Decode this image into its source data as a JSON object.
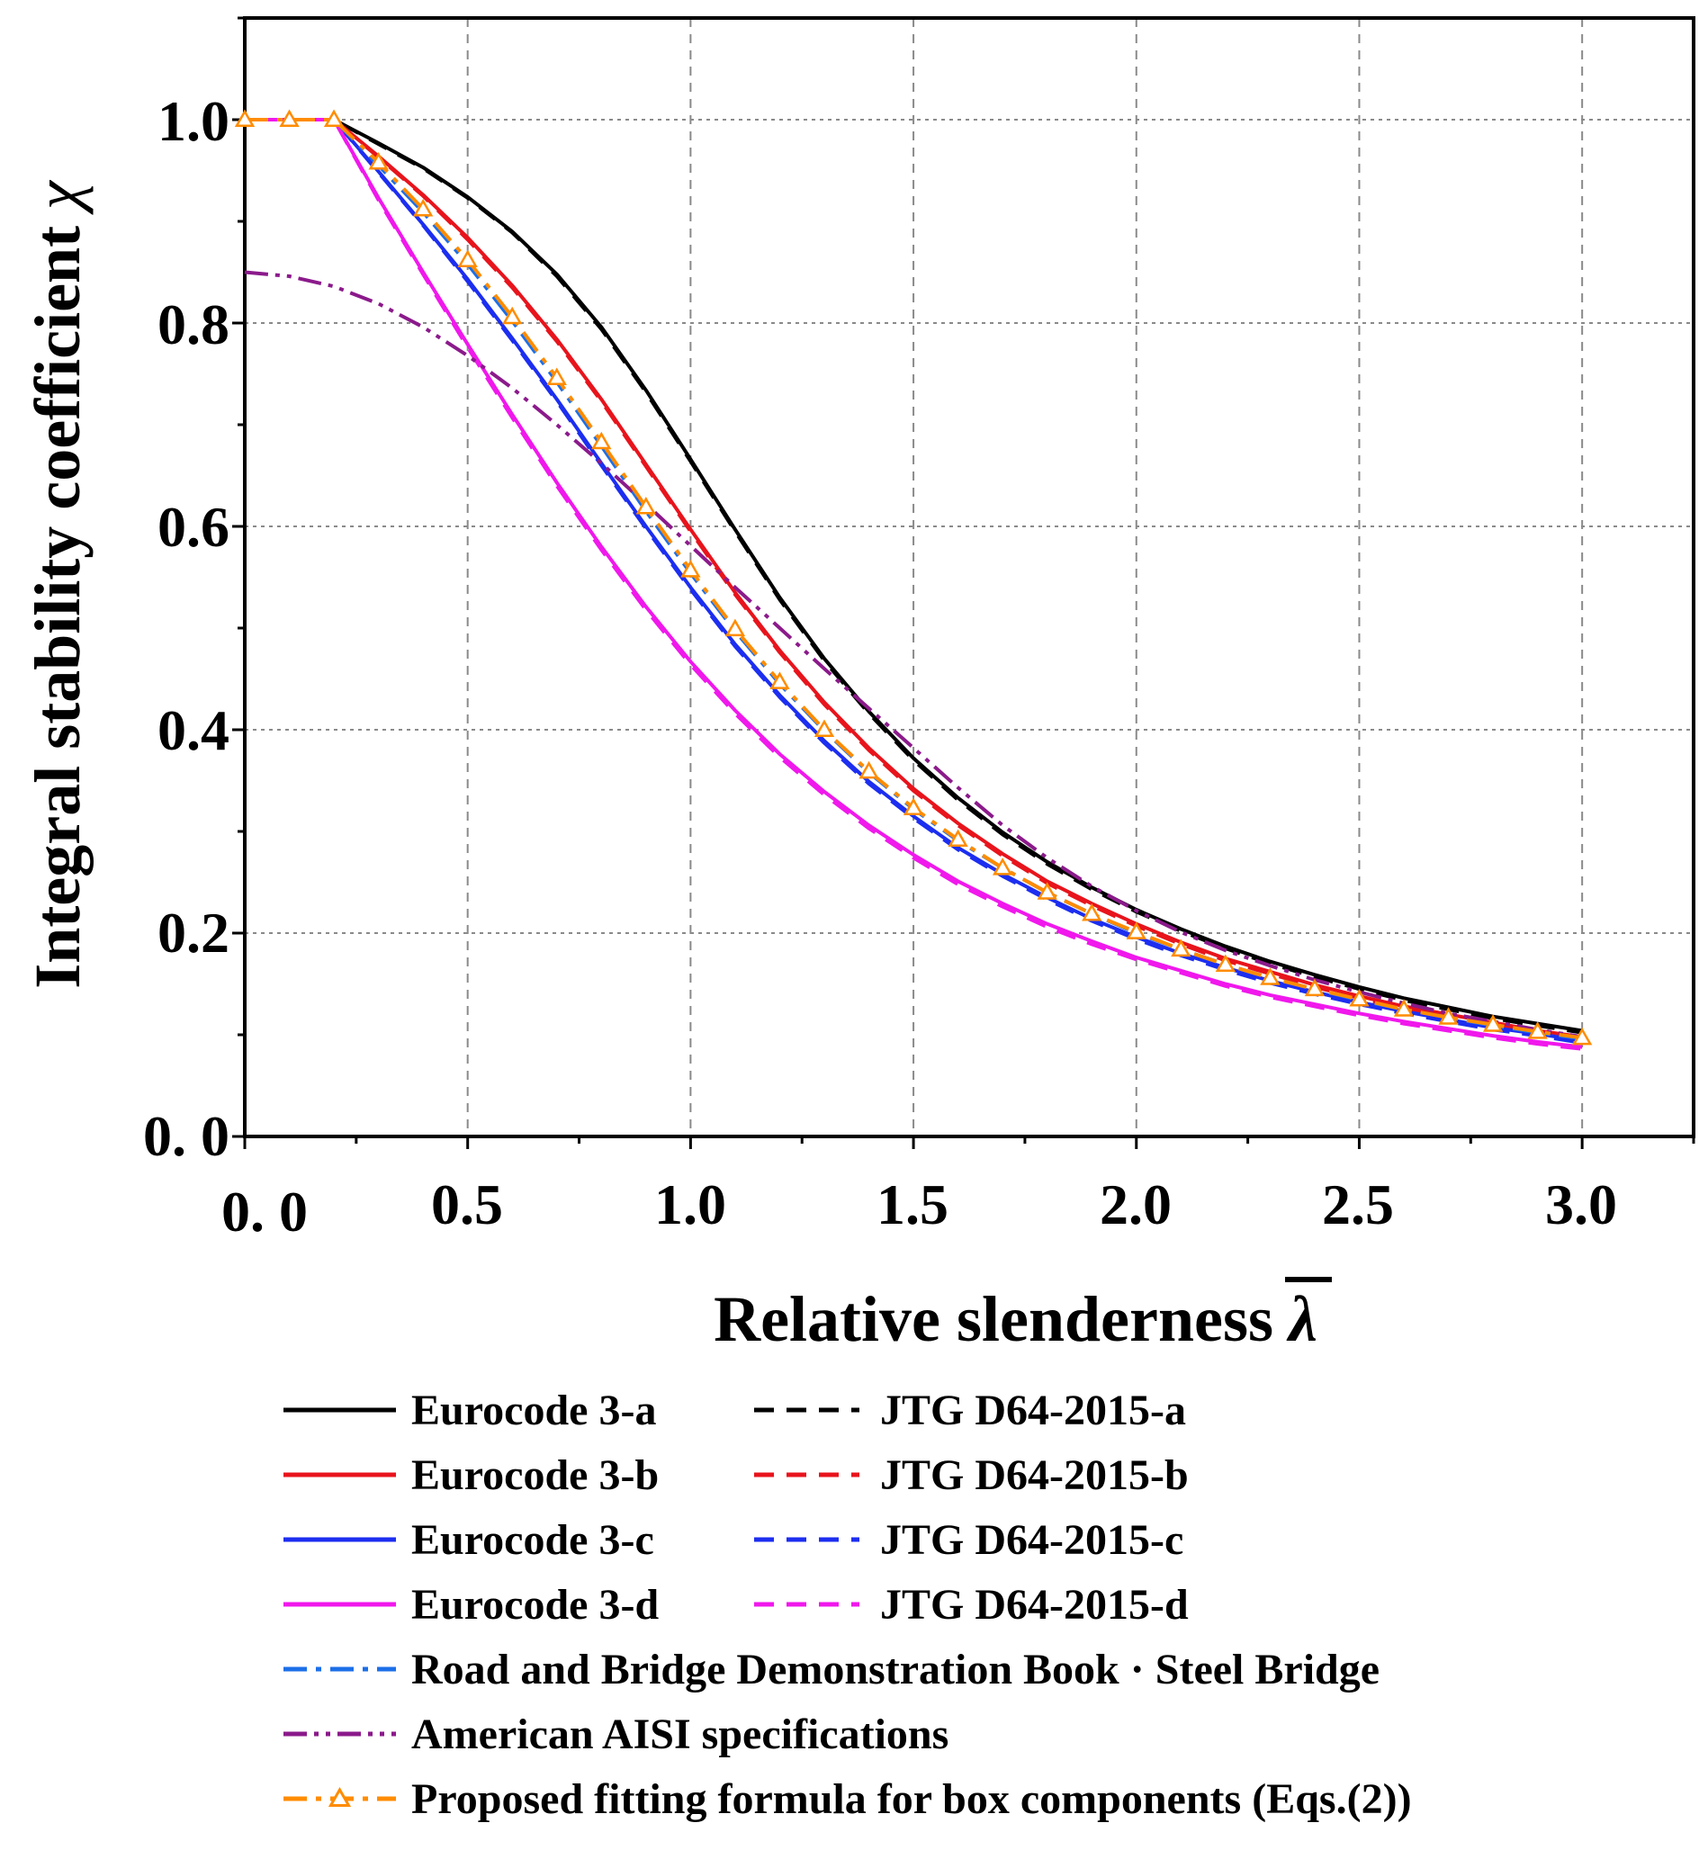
{
  "chart_data": {
    "type": "line",
    "xlabel": "Relative slenderness",
    "xlabel_symbol": "λ",
    "ylabel": "Integral stability coefficient",
    "ylabel_symbol": "χ",
    "xlim": [
      0,
      3.25
    ],
    "ylim": [
      0,
      1.1
    ],
    "grid": true,
    "legend_position": "bottom",
    "x_ticks": [
      0,
      0.5,
      1.0,
      1.5,
      2.0,
      2.5,
      3.0
    ],
    "x_tick_labels": [
      "0. 0",
      "0.5",
      "1.0",
      "1.5",
      "2.0",
      "2.5",
      "3.0"
    ],
    "y_ticks": [
      0,
      0.2,
      0.4,
      0.6,
      0.8,
      1.0
    ],
    "y_tick_labels": [
      "0. 0",
      "0.2",
      "0.4",
      "0.6",
      "0.8",
      "1.0"
    ],
    "x": [
      0,
      0.1,
      0.2,
      0.3,
      0.4,
      0.5,
      0.6,
      0.7,
      0.8,
      0.9,
      1.0,
      1.1,
      1.2,
      1.3,
      1.4,
      1.5,
      1.6,
      1.7,
      1.8,
      1.9,
      2.0,
      2.1,
      2.2,
      2.3,
      2.4,
      2.5,
      2.6,
      2.7,
      2.8,
      2.9,
      3.0
    ],
    "series": [
      {
        "name": "Eurocode 3-a",
        "color": "#000000",
        "dash": "solid",
        "marker": "none",
        "values": [
          1.0,
          1.0,
          1.0,
          0.977,
          0.953,
          0.924,
          0.89,
          0.848,
          0.796,
          0.734,
          0.666,
          0.597,
          0.53,
          0.47,
          0.418,
          0.372,
          0.333,
          0.299,
          0.27,
          0.245,
          0.223,
          0.204,
          0.187,
          0.172,
          0.159,
          0.147,
          0.136,
          0.127,
          0.118,
          0.111,
          0.104
        ]
      },
      {
        "name": "JTG D64-2015-a",
        "color": "#000000",
        "dash": "dash",
        "marker": "none",
        "values": [
          1.0,
          1.0,
          1.0,
          0.976,
          0.952,
          0.923,
          0.889,
          0.846,
          0.794,
          0.732,
          0.664,
          0.595,
          0.528,
          0.468,
          0.416,
          0.37,
          0.331,
          0.297,
          0.268,
          0.243,
          0.221,
          0.202,
          0.185,
          0.17,
          0.157,
          0.145,
          0.134,
          0.125,
          0.116,
          0.109,
          0.102
        ]
      },
      {
        "name": "Eurocode 3-b",
        "color": "#e8141c",
        "dash": "solid",
        "marker": "none",
        "values": [
          1.0,
          1.0,
          1.0,
          0.964,
          0.926,
          0.884,
          0.837,
          0.784,
          0.725,
          0.661,
          0.597,
          0.535,
          0.478,
          0.427,
          0.382,
          0.342,
          0.308,
          0.278,
          0.251,
          0.229,
          0.209,
          0.191,
          0.175,
          0.162,
          0.149,
          0.138,
          0.128,
          0.12,
          0.112,
          0.104,
          0.098
        ]
      },
      {
        "name": "JTG D64-2015-b",
        "color": "#e8141c",
        "dash": "dash",
        "marker": "none",
        "values": [
          1.0,
          1.0,
          1.0,
          0.963,
          0.925,
          0.882,
          0.835,
          0.782,
          0.723,
          0.659,
          0.595,
          0.533,
          0.476,
          0.425,
          0.38,
          0.34,
          0.306,
          0.276,
          0.249,
          0.227,
          0.207,
          0.189,
          0.173,
          0.16,
          0.147,
          0.136,
          0.126,
          0.118,
          0.11,
          0.102,
          0.096
        ]
      },
      {
        "name": "Eurocode 3-c",
        "color": "#1c2ef0",
        "dash": "solid",
        "marker": "none",
        "values": [
          1.0,
          1.0,
          1.0,
          0.949,
          0.897,
          0.843,
          0.785,
          0.725,
          0.662,
          0.6,
          0.54,
          0.484,
          0.434,
          0.389,
          0.349,
          0.315,
          0.284,
          0.258,
          0.235,
          0.214,
          0.196,
          0.18,
          0.166,
          0.153,
          0.142,
          0.132,
          0.123,
          0.115,
          0.107,
          0.101,
          0.094
        ]
      },
      {
        "name": "JTG D64-2015-c",
        "color": "#1c2ef0",
        "dash": "dash",
        "marker": "none",
        "values": [
          1.0,
          1.0,
          1.0,
          0.948,
          0.896,
          0.841,
          0.783,
          0.723,
          0.66,
          0.598,
          0.538,
          0.482,
          0.432,
          0.387,
          0.347,
          0.313,
          0.282,
          0.256,
          0.233,
          0.212,
          0.194,
          0.178,
          0.164,
          0.151,
          0.14,
          0.13,
          0.121,
          0.113,
          0.105,
          0.099,
          0.092
        ]
      },
      {
        "name": "Eurocode 3-d",
        "color": "#f018ec",
        "dash": "solid",
        "marker": "none",
        "values": [
          1.0,
          1.0,
          1.0,
          0.923,
          0.85,
          0.779,
          0.71,
          0.643,
          0.58,
          0.521,
          0.467,
          0.419,
          0.376,
          0.339,
          0.306,
          0.277,
          0.251,
          0.229,
          0.209,
          0.192,
          0.176,
          0.163,
          0.15,
          0.139,
          0.13,
          0.121,
          0.113,
          0.106,
          0.099,
          0.093,
          0.088
        ]
      },
      {
        "name": "JTG D64-2015-d",
        "color": "#f018ec",
        "dash": "dash",
        "marker": "none",
        "values": [
          1.0,
          1.0,
          1.0,
          0.921,
          0.848,
          0.776,
          0.707,
          0.64,
          0.577,
          0.518,
          0.464,
          0.416,
          0.373,
          0.336,
          0.303,
          0.274,
          0.248,
          0.226,
          0.206,
          0.189,
          0.174,
          0.161,
          0.148,
          0.137,
          0.128,
          0.119,
          0.111,
          0.104,
          0.097,
          0.091,
          0.086
        ]
      },
      {
        "name": "Road and Bridge Demonstration Book · Steel Bridge",
        "color": "#1c6fe8",
        "dash": "dashdot",
        "marker": "none",
        "values": [
          1.0,
          1.0,
          1.0,
          0.955,
          0.909,
          0.858,
          0.802,
          0.742,
          0.679,
          0.615,
          0.554,
          0.497,
          0.445,
          0.399,
          0.358,
          0.322,
          0.291,
          0.264,
          0.24,
          0.219,
          0.2,
          0.184,
          0.169,
          0.156,
          0.145,
          0.134,
          0.125,
          0.117,
          0.109,
          0.102,
          0.096
        ]
      },
      {
        "name": "American AISI specifications",
        "color": "#8b1a8b",
        "dash": "dashdotdot",
        "marker": "none",
        "values": [
          0.85,
          0.846,
          0.836,
          0.819,
          0.796,
          0.768,
          0.736,
          0.7,
          0.662,
          0.622,
          0.581,
          0.54,
          0.5,
          0.46,
          0.421,
          0.382,
          0.343,
          0.306,
          0.274,
          0.246,
          0.222,
          0.201,
          0.183,
          0.168,
          0.154,
          0.142,
          0.131,
          0.121,
          0.113,
          0.105,
          0.098
        ]
      },
      {
        "name": "Proposed fitting formula for box components (Eqs.(2))",
        "color": "#ff8c00",
        "dash": "dashdot",
        "marker": "triangle",
        "values": [
          1.0,
          1.0,
          1.0,
          0.958,
          0.912,
          0.862,
          0.806,
          0.746,
          0.683,
          0.619,
          0.557,
          0.499,
          0.447,
          0.4,
          0.359,
          0.323,
          0.292,
          0.264,
          0.24,
          0.219,
          0.201,
          0.184,
          0.169,
          0.156,
          0.145,
          0.135,
          0.125,
          0.117,
          0.11,
          0.103,
          0.097
        ]
      }
    ]
  }
}
